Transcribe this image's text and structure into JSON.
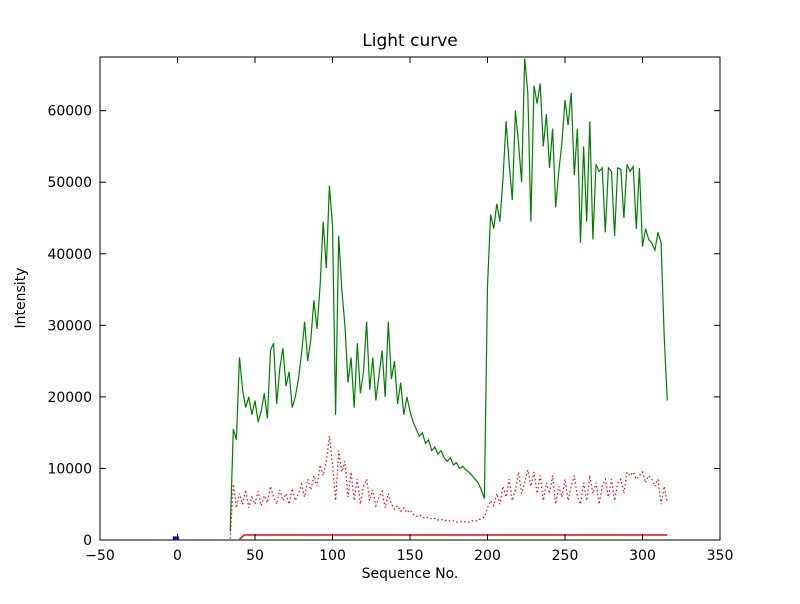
{
  "figure": {
    "background": "#ffffff"
  },
  "chart_data": {
    "type": "line",
    "title": "Light curve",
    "xlabel": "Sequence No.",
    "ylabel": "Intensity",
    "xlim": [
      -50,
      350
    ],
    "ylim": [
      0,
      67500
    ],
    "xticks": [
      -50,
      0,
      50,
      100,
      150,
      200,
      250,
      300,
      350
    ],
    "yticks": [
      0,
      10000,
      20000,
      30000,
      40000,
      50000,
      60000
    ],
    "grid": false,
    "legend": null,
    "axis_color": "#000000",
    "series": [
      {
        "name": "green-line",
        "color": "#008000",
        "style": "solid",
        "width": 1.2,
        "x": [
          34,
          36,
          38,
          40,
          42,
          44,
          46,
          48,
          50,
          52,
          54,
          56,
          58,
          60,
          62,
          64,
          66,
          68,
          70,
          72,
          74,
          76,
          78,
          80,
          82,
          84,
          86,
          88,
          90,
          92,
          94,
          96,
          98,
          100,
          102,
          104,
          106,
          108,
          110,
          112,
          114,
          116,
          118,
          120,
          122,
          124,
          126,
          128,
          130,
          132,
          134,
          136,
          138,
          140,
          142,
          144,
          146,
          148,
          150,
          152,
          154,
          156,
          158,
          160,
          162,
          164,
          166,
          168,
          170,
          172,
          174,
          176,
          178,
          180,
          182,
          184,
          186,
          188,
          190,
          192,
          194,
          196,
          198,
          200,
          202,
          204,
          206,
          208,
          210,
          212,
          214,
          216,
          218,
          220,
          222,
          224,
          226,
          228,
          230,
          232,
          234,
          236,
          238,
          240,
          242,
          244,
          246,
          248,
          250,
          252,
          254,
          256,
          258,
          260,
          262,
          264,
          266,
          268,
          270,
          272,
          274,
          276,
          278,
          280,
          282,
          284,
          286,
          288,
          290,
          292,
          294,
          296,
          298,
          300,
          302,
          304,
          306,
          308,
          310,
          312,
          314,
          316
        ],
        "y": [
          1200,
          15500,
          14000,
          25500,
          21000,
          18500,
          20000,
          17500,
          19500,
          16500,
          18000,
          20500,
          17000,
          26500,
          27500,
          19000,
          24000,
          26800,
          21500,
          23500,
          18500,
          20000,
          22500,
          26000,
          30500,
          25000,
          28000,
          33500,
          29500,
          35500,
          44500,
          38000,
          49500,
          44000,
          17500,
          42500,
          35000,
          30000,
          22000,
          25500,
          18500,
          27500,
          20500,
          23500,
          30500,
          21000,
          25500,
          19500,
          23000,
          26500,
          20000,
          30500,
          22500,
          25000,
          19000,
          22000,
          17500,
          20000,
          18000,
          16500,
          15500,
          14500,
          15000,
          13500,
          14000,
          12500,
          13000,
          12000,
          12500,
          11500,
          11000,
          11500,
          10500,
          10800,
          10000,
          10300,
          9800,
          9500,
          9000,
          8500,
          8000,
          7000,
          5800,
          35500,
          45500,
          43500,
          47000,
          44500,
          50500,
          58500,
          52500,
          47500,
          60000,
          55500,
          50000,
          67300,
          62500,
          44500,
          63500,
          61000,
          63800,
          55000,
          59500,
          52000,
          57500,
          46500,
          51500,
          55500,
          61500,
          58000,
          62500,
          51000,
          57500,
          41500,
          55000,
          44500,
          58500,
          42000,
          52500,
          51500,
          52000,
          43000,
          52000,
          51500,
          42500,
          52000,
          51800,
          45000,
          52500,
          51500,
          52200,
          43500,
          52000,
          41000,
          43500,
          42000,
          41500,
          40500,
          43000,
          41500,
          28500,
          19500
        ]
      },
      {
        "name": "red-dotted-line",
        "color": "#ff0000",
        "style": "dotted",
        "width": 1.2,
        "x": [
          34,
          36,
          38,
          40,
          42,
          44,
          46,
          48,
          50,
          52,
          54,
          56,
          58,
          60,
          62,
          64,
          66,
          68,
          70,
          72,
          74,
          76,
          78,
          80,
          82,
          84,
          86,
          88,
          90,
          92,
          94,
          96,
          98,
          100,
          102,
          104,
          106,
          108,
          110,
          112,
          114,
          116,
          118,
          120,
          122,
          124,
          126,
          128,
          130,
          132,
          134,
          136,
          138,
          140,
          142,
          144,
          146,
          148,
          150,
          152,
          154,
          156,
          158,
          160,
          162,
          164,
          166,
          168,
          170,
          172,
          174,
          176,
          178,
          180,
          182,
          184,
          186,
          188,
          190,
          192,
          194,
          196,
          198,
          200,
          202,
          204,
          206,
          208,
          210,
          212,
          214,
          216,
          218,
          220,
          222,
          224,
          226,
          228,
          230,
          232,
          234,
          236,
          238,
          240,
          242,
          244,
          246,
          248,
          250,
          252,
          254,
          256,
          258,
          260,
          262,
          264,
          266,
          268,
          270,
          272,
          274,
          276,
          278,
          280,
          282,
          284,
          286,
          288,
          290,
          292,
          294,
          296,
          298,
          300,
          302,
          304,
          306,
          308,
          310,
          312,
          314,
          316
        ],
        "y": [
          200,
          7800,
          4500,
          6500,
          5000,
          7000,
          4500,
          6000,
          5000,
          6800,
          4800,
          6200,
          5200,
          7500,
          6000,
          5000,
          7000,
          5500,
          6500,
          5000,
          7200,
          5500,
          6500,
          7800,
          6000,
          8500,
          7000,
          9000,
          7500,
          10500,
          9000,
          11000,
          14500,
          10500,
          5500,
          12500,
          9500,
          11000,
          6000,
          9500,
          5500,
          8500,
          5000,
          7500,
          8500,
          5500,
          7000,
          4800,
          6000,
          6800,
          4500,
          6500,
          5000,
          4300,
          4800,
          4000,
          4500,
          3800,
          4200,
          3600,
          3300,
          3500,
          3200,
          3000,
          3200,
          2900,
          3000,
          2800,
          2900,
          2700,
          2800,
          2600,
          2700,
          2500,
          2600,
          2500,
          2600,
          2500,
          2700,
          2600,
          2800,
          3000,
          3200,
          4500,
          5500,
          4800,
          6500,
          5000,
          7500,
          6000,
          8500,
          5500,
          7000,
          9500,
          6500,
          8000,
          9800,
          7500,
          9500,
          6500,
          9000,
          5500,
          8000,
          6500,
          9000,
          5000,
          7500,
          6000,
          8500,
          5500,
          7500,
          9000,
          6000,
          5000,
          8000,
          5500,
          9000,
          6500,
          8000,
          5000,
          7500,
          8500,
          6000,
          8500,
          5500,
          8000,
          8500,
          6500,
          9500,
          9000,
          9500,
          8500,
          9000,
          9500,
          8000,
          9000,
          8500,
          7500,
          8500,
          5000,
          7500,
          5200
        ]
      },
      {
        "name": "red-solid-line",
        "color": "#ff0000",
        "style": "solid",
        "width": 1.4,
        "x": [
          40,
          43,
          316
        ],
        "y": [
          100,
          700,
          700
        ]
      },
      {
        "name": "blue-segment",
        "color": "#0000ff",
        "style": "solid",
        "width": 3,
        "x": [
          -3,
          1
        ],
        "y": [
          300,
          300
        ]
      }
    ]
  }
}
